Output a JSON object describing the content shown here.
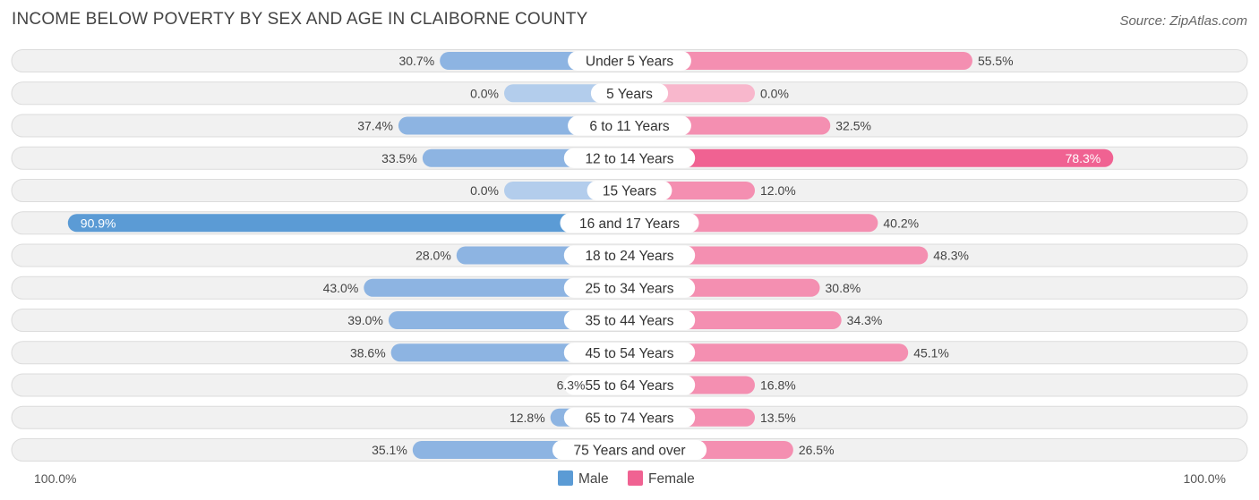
{
  "chart_data": {
    "type": "bar",
    "title": "INCOME BELOW POVERTY BY SEX AND AGE IN CLAIBORNE COUNTY",
    "source": "Source: ZipAtlas.com",
    "categories": [
      "Under 5 Years",
      "5 Years",
      "6 to 11 Years",
      "12 to 14 Years",
      "15 Years",
      "16 and 17 Years",
      "18 to 24 Years",
      "25 to 34 Years",
      "35 to 44 Years",
      "45 to 54 Years",
      "55 to 64 Years",
      "65 to 74 Years",
      "75 Years and over"
    ],
    "series": [
      {
        "name": "Male",
        "values": [
          30.7,
          0.0,
          37.4,
          33.5,
          0.0,
          90.9,
          28.0,
          43.0,
          39.0,
          38.6,
          6.3,
          12.8,
          35.1
        ]
      },
      {
        "name": "Female",
        "values": [
          55.5,
          0.0,
          32.5,
          78.3,
          12.0,
          40.2,
          48.3,
          30.8,
          34.3,
          45.1,
          16.8,
          13.5,
          26.5
        ]
      }
    ],
    "value_labels": {
      "Male": [
        "30.7%",
        "0.0%",
        "37.4%",
        "33.5%",
        "0.0%",
        "90.9%",
        "28.0%",
        "43.0%",
        "39.0%",
        "38.6%",
        "6.3%",
        "12.8%",
        "35.1%"
      ],
      "Female": [
        "55.5%",
        "0.0%",
        "32.5%",
        "78.3%",
        "12.0%",
        "40.2%",
        "48.3%",
        "30.8%",
        "34.3%",
        "45.1%",
        "16.8%",
        "13.5%",
        "26.5%"
      ]
    },
    "axis_min_label": "100.0%",
    "axis_max_label": "100.0%",
    "xlim": [
      -100,
      100
    ],
    "legend_position": "bottom-center",
    "colors": {
      "male": "#8db4e2",
      "male_strong": "#5b9bd5",
      "male_empty": "#b3cdec",
      "female": "#f48fb1",
      "female_strong": "#f06292",
      "female_empty": "#f8b7cc"
    }
  }
}
